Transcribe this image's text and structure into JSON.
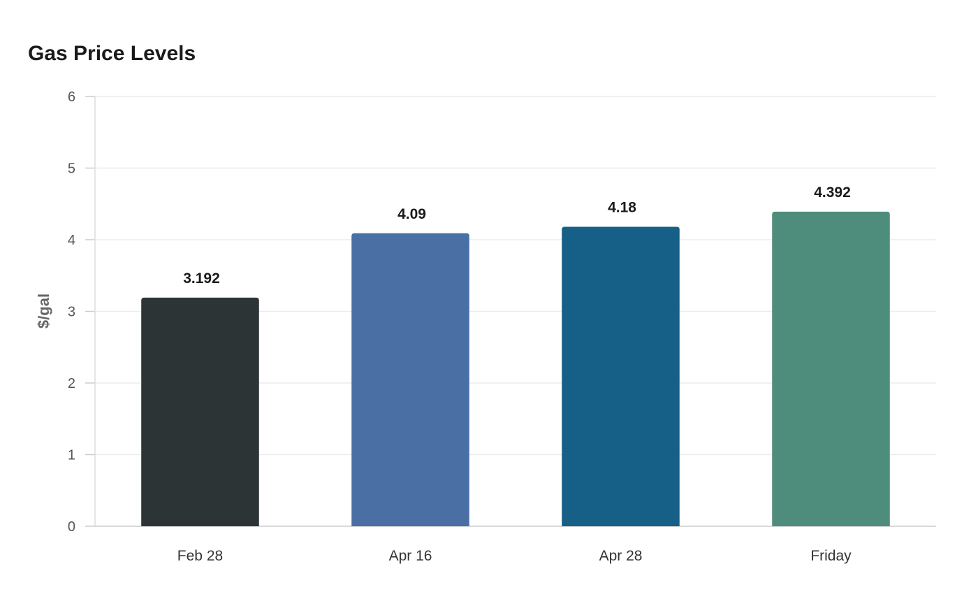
{
  "chart_data": {
    "type": "bar",
    "title": "Gas Price Levels",
    "xlabel": "",
    "ylabel": "$/gal",
    "ylim": [
      0,
      6
    ],
    "yticks": [
      0,
      1,
      2,
      3,
      4,
      5,
      6
    ],
    "grid": true,
    "categories": [
      "Feb 28",
      "Apr 16",
      "Apr 28",
      "Friday"
    ],
    "values": [
      3.192,
      4.09,
      4.18,
      4.392
    ],
    "value_labels": [
      "3.192",
      "4.09",
      "4.18",
      "4.392"
    ],
    "colors": [
      "#2d3436",
      "#4a6fa5",
      "#166088",
      "#4e8d7c"
    ]
  }
}
